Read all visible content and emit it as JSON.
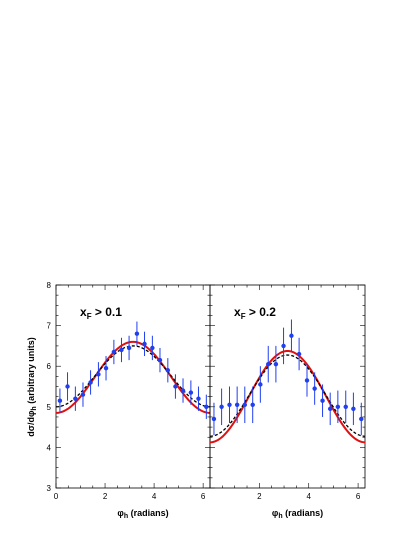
{
  "chart_data": [
    {
      "type": "scatter",
      "panel_label": {
        "main": "x",
        "sub": "F",
        "rest": " > 0.1"
      },
      "xlabel": {
        "main": "φ",
        "sub": "h",
        "rest": " (radians)"
      },
      "ylabel": "dσ/dφₕ (arbitrary units)",
      "xlim": [
        0,
        6.28
      ],
      "ylim": [
        3,
        8
      ],
      "xticks": [
        0,
        2,
        4,
        6
      ],
      "yticks": [
        3,
        4,
        5,
        6,
        7,
        8
      ],
      "grid": false,
      "points": {
        "x": [
          0.16,
          0.47,
          0.79,
          1.1,
          1.41,
          1.73,
          2.04,
          2.36,
          2.67,
          2.98,
          3.3,
          3.61,
          3.93,
          4.24,
          4.56,
          4.87,
          5.18,
          5.5,
          5.81,
          6.13
        ],
        "y": [
          5.15,
          5.5,
          5.2,
          5.3,
          5.6,
          5.8,
          5.95,
          6.35,
          6.4,
          6.45,
          6.8,
          6.55,
          6.45,
          6.15,
          5.9,
          5.5,
          5.4,
          5.35,
          5.2,
          5.0
        ],
        "err": [
          0.3,
          0.35,
          0.3,
          0.3,
          0.3,
          0.3,
          0.3,
          0.3,
          0.3,
          0.3,
          0.3,
          0.3,
          0.3,
          0.3,
          0.3,
          0.3,
          0.3,
          0.3,
          0.3,
          0.3
        ],
        "color": "#1f3ff0"
      },
      "curves": [
        {
          "style": "solid",
          "color": "#e01010",
          "mean": 5.725,
          "amplitude": 0.875
        },
        {
          "style": "dashed",
          "color": "#000000",
          "mean": 5.75,
          "amplitude": 0.75
        }
      ]
    },
    {
      "type": "scatter",
      "panel_label": {
        "main": "x",
        "sub": "F",
        "rest": " > 0.2"
      },
      "xlabel": {
        "main": "φ",
        "sub": "h",
        "rest": " (radians)"
      },
      "ylabel": "",
      "xlim": [
        0,
        6.28
      ],
      "ylim": [
        3,
        8
      ],
      "xticks": [
        2,
        4,
        6
      ],
      "yticks": [],
      "grid": false,
      "points": {
        "x": [
          0.16,
          0.47,
          0.79,
          1.1,
          1.41,
          1.73,
          2.04,
          2.36,
          2.67,
          2.98,
          3.3,
          3.61,
          3.93,
          4.24,
          4.56,
          4.87,
          5.18,
          5.5,
          5.81,
          6.13
        ],
        "y": [
          4.7,
          5.0,
          5.05,
          5.05,
          5.05,
          5.05,
          5.55,
          6.05,
          6.05,
          6.5,
          6.75,
          6.3,
          5.65,
          5.45,
          5.15,
          4.95,
          5.0,
          5.0,
          4.95,
          4.7
        ],
        "err": [
          0.4,
          0.45,
          0.45,
          0.45,
          0.45,
          0.45,
          0.45,
          0.45,
          0.45,
          0.45,
          0.4,
          0.4,
          0.4,
          0.4,
          0.4,
          0.4,
          0.4,
          0.4,
          0.4,
          0.4
        ],
        "color": "#1f3ff0"
      },
      "curves": [
        {
          "style": "solid",
          "color": "#e01010",
          "mean": 5.25,
          "amplitude": 1.125
        },
        {
          "style": "dashed",
          "color": "#000000",
          "mean": 5.275,
          "amplitude": 1.0
        }
      ]
    }
  ]
}
